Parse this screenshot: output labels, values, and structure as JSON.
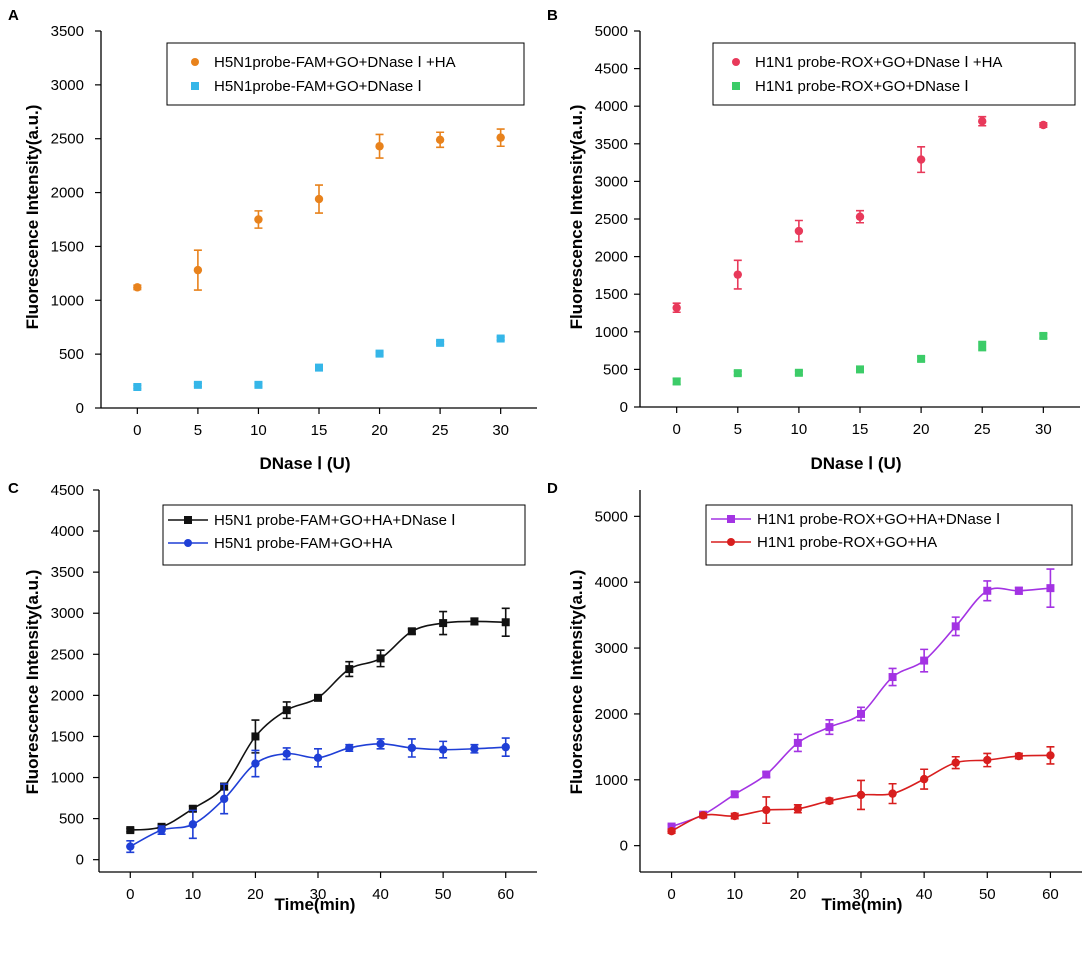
{
  "chart_data": [
    {
      "id": "A",
      "type": "scatter",
      "panel_label": "A",
      "xlabel": "DNase Ⅰ (U)",
      "ylabel": "Fluorescence Intensity(a.u.)",
      "xlim": [
        -3,
        33
      ],
      "ylim": [
        0,
        3500
      ],
      "xticks": [
        0,
        5,
        10,
        15,
        20,
        25,
        30
      ],
      "yticks": [
        0,
        500,
        1000,
        1500,
        2000,
        2500,
        3000,
        3500
      ],
      "legend_position": "top-right",
      "series": [
        {
          "name": "H5N1probe-FAM+GO+DNase Ⅰ +HA",
          "color": "#e8821c",
          "marker": "circle",
          "line": false,
          "x": [
            0,
            5,
            10,
            15,
            20,
            25,
            30
          ],
          "y": [
            1120,
            1280,
            1750,
            1940,
            2430,
            2490,
            2510
          ],
          "err": [
            20,
            185,
            80,
            130,
            110,
            70,
            80
          ]
        },
        {
          "name": "H5N1probe-FAM+GO+DNase Ⅰ",
          "color": "#35b6e8",
          "marker": "square",
          "line": false,
          "x": [
            0,
            5,
            10,
            15,
            20,
            25,
            30
          ],
          "y": [
            195,
            215,
            215,
            375,
            505,
            605,
            645
          ],
          "err": [
            15,
            15,
            15,
            15,
            15,
            15,
            15
          ]
        }
      ]
    },
    {
      "id": "B",
      "type": "scatter",
      "panel_label": "B",
      "xlabel": "DNase Ⅰ (U)",
      "ylabel": "Fluorescence Intensity(a.u.)",
      "xlim": [
        -3,
        33
      ],
      "ylim": [
        0,
        5000
      ],
      "xticks": [
        0,
        5,
        10,
        15,
        20,
        25,
        30
      ],
      "yticks": [
        0,
        500,
        1000,
        1500,
        2000,
        2500,
        3000,
        3500,
        4000,
        4500,
        5000
      ],
      "legend_position": "top-right",
      "series": [
        {
          "name": "H1N1 probe-ROX+GO+DNase Ⅰ +HA",
          "color": "#e8395a",
          "marker": "circle",
          "line": false,
          "x": [
            0,
            5,
            10,
            15,
            20,
            25,
            30
          ],
          "y": [
            1320,
            1760,
            2340,
            2530,
            3290,
            3800,
            3750
          ],
          "err": [
            60,
            190,
            140,
            80,
            170,
            60,
            30
          ]
        },
        {
          "name": "H1N1 probe-ROX+GO+DNase Ⅰ",
          "color": "#3ccc68",
          "marker": "square",
          "line": false,
          "x": [
            0,
            5,
            10,
            15,
            20,
            25,
            30
          ],
          "y": [
            340,
            450,
            455,
            500,
            640,
            810,
            945
          ],
          "err": [
            40,
            25,
            25,
            30,
            30,
            60,
            30
          ]
        }
      ]
    },
    {
      "id": "C",
      "type": "line",
      "panel_label": "C",
      "xlabel": "Time(min)",
      "ylabel": "Fluorescence Intensity(a.u.)",
      "xlim": [
        -5,
        65
      ],
      "ylim": [
        -150,
        4500
      ],
      "xticks": [
        0,
        10,
        20,
        30,
        40,
        50,
        60
      ],
      "yticks": [
        0,
        500,
        1000,
        1500,
        2000,
        2500,
        3000,
        3500,
        4000,
        4500
      ],
      "legend_position": "top-right",
      "series": [
        {
          "name": "H5N1 probe-FAM+GO+HA+DNase Ⅰ",
          "color": "#111111",
          "marker": "square",
          "line": true,
          "x": [
            0,
            5,
            10,
            15,
            20,
            25,
            30,
            35,
            40,
            45,
            50,
            55,
            60
          ],
          "y": [
            360,
            400,
            620,
            890,
            1500,
            1820,
            1970,
            2320,
            2450,
            2780,
            2880,
            2900,
            2890
          ],
          "err": [
            20,
            20,
            30,
            40,
            200,
            100,
            30,
            90,
            100,
            30,
            140,
            40,
            170
          ]
        },
        {
          "name": "H5N1 probe-FAM+GO+HA",
          "color": "#1f3fd6",
          "marker": "circle",
          "line": true,
          "x": [
            0,
            5,
            10,
            15,
            20,
            25,
            30,
            35,
            40,
            45,
            50,
            55,
            60
          ],
          "y": [
            160,
            360,
            430,
            740,
            1170,
            1290,
            1240,
            1360,
            1410,
            1360,
            1340,
            1350,
            1370
          ],
          "err": [
            70,
            50,
            170,
            180,
            160,
            70,
            110,
            40,
            60,
            110,
            100,
            50,
            110
          ]
        }
      ]
    },
    {
      "id": "D",
      "type": "line",
      "panel_label": "D",
      "xlabel": "Time(min)",
      "ylabel": "Fluorescence Intensity(a.u.)",
      "xlim": [
        -5,
        65
      ],
      "ylim": [
        -400,
        5400
      ],
      "xticks": [
        0,
        10,
        20,
        30,
        40,
        50,
        60
      ],
      "yticks": [
        0,
        1000,
        2000,
        3000,
        4000,
        5000
      ],
      "legend_position": "top-right",
      "series": [
        {
          "name": "H1N1 probe-ROX+GO+HA+DNase Ⅰ",
          "color": "#a333e3",
          "marker": "square",
          "line": true,
          "x": [
            0,
            5,
            10,
            15,
            20,
            25,
            30,
            35,
            40,
            45,
            50,
            55,
            60
          ],
          "y": [
            290,
            470,
            780,
            1080,
            1560,
            1800,
            2000,
            2560,
            2810,
            3330,
            3870,
            3870,
            3910
          ],
          "err": [
            30,
            30,
            40,
            40,
            130,
            110,
            100,
            130,
            170,
            140,
            150,
            50,
            290
          ]
        },
        {
          "name": "H1N1 probe-ROX+GO+HA",
          "color": "#d81e1e",
          "marker": "circle",
          "line": true,
          "x": [
            0,
            5,
            10,
            15,
            20,
            25,
            30,
            35,
            40,
            45,
            50,
            55,
            60
          ],
          "y": [
            220,
            460,
            450,
            540,
            560,
            680,
            770,
            790,
            1010,
            1260,
            1300,
            1360,
            1370
          ],
          "err": [
            30,
            30,
            40,
            200,
            60,
            40,
            220,
            150,
            150,
            90,
            100,
            40,
            130
          ]
        }
      ]
    }
  ]
}
